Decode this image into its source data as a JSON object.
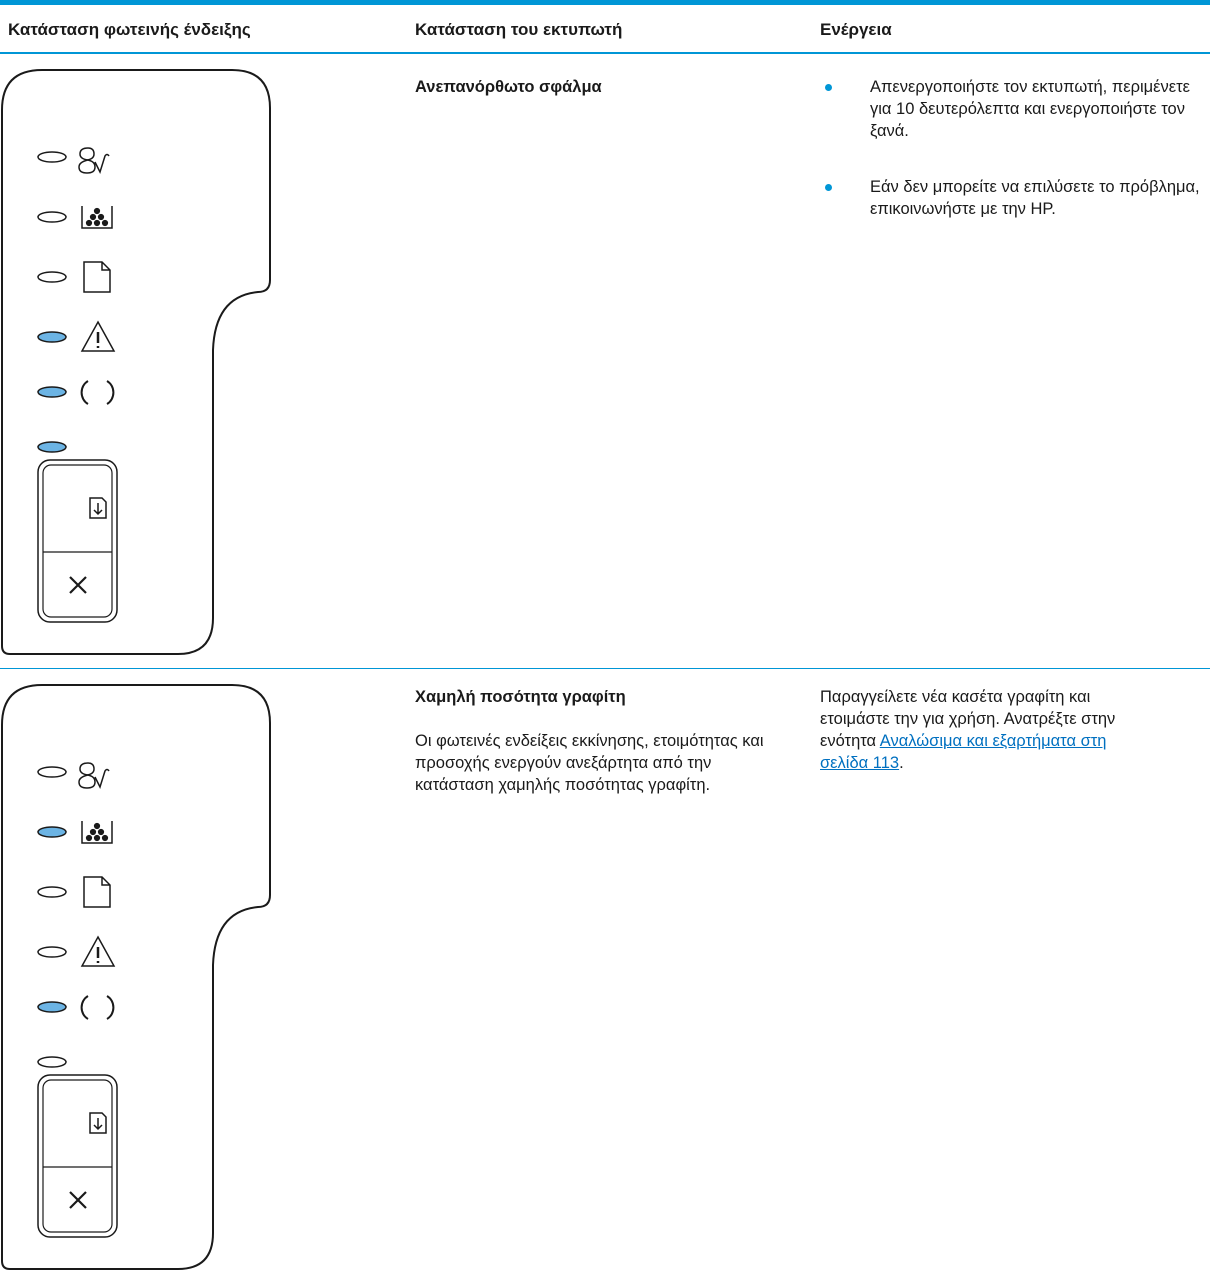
{
  "header": {
    "columns": [
      "Κατάσταση φωτεινής ένδειξης",
      "Κατάσταση του εκτυπωτή",
      "Ενέργεια"
    ]
  },
  "rows": [
    {
      "status": "Ανεπανόρθωτο σφάλμα",
      "actions": [
        "Απενεργοποιήστε τον εκτυπωτή, περιμένετε για 10 δευτερόλεπτα και ενεργοποιήστε τον ξανά.",
        "Εάν δεν μπορείτε να επιλύσετε το πρόβλημα, επικοινωνήστε με την HP."
      ]
    },
    {
      "status": "Χαμηλή ποσότητα γραφίτη",
      "description": "Οι φωτεινές ενδείξεις εκκίνησης, ετοιμότητας και προσοχής ενεργούν ανεξάρτητα από την κατάσταση χαμηλής ποσότητας γραφίτη.",
      "action": {
        "text": "Παραγγείλετε νέα κασέτα γραφίτη και ετοιμάστε την για χρήση. Ανατρέξτε στην ενότητα ",
        "link": "Αναλώσιμα και εξαρτήματα στη σελίδα 113",
        "end": "."
      }
    }
  ]
}
